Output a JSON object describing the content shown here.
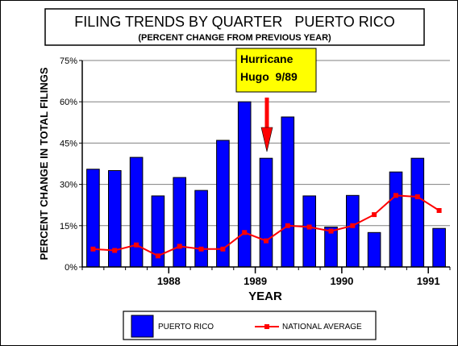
{
  "chart_data": {
    "type": "bar",
    "title": "FILING TRENDS BY QUARTER   PUERTO RICO",
    "subtitle": "(PERCENT CHANGE FROM PREVIOUS YEAR)",
    "xlabel": "YEAR",
    "ylabel": "PERCENT CHANGE IN TOTAL FILINGS",
    "ylim": [
      0,
      75
    ],
    "yticks": [
      "0%",
      "15%",
      "30%",
      "45%",
      "60%",
      "75%"
    ],
    "ytick_values": [
      0,
      15,
      30,
      45,
      60,
      75
    ],
    "xtick_labels": [
      "1988",
      "1989",
      "1990",
      "1991"
    ],
    "grid": true,
    "legend_position": "bottom",
    "bar_color": "#0000ff",
    "line_color": "#ff0000",
    "series": [
      {
        "name": "PUERTO RICO",
        "kind": "bar",
        "values": [
          35.5,
          35,
          39.8,
          25.8,
          32.5,
          27.8,
          46,
          60,
          39.5,
          54.5,
          25.8,
          14.5,
          26,
          12.5,
          34.5,
          39.5,
          14
        ]
      },
      {
        "name": "NATIONAL AVERAGE",
        "kind": "line",
        "values": [
          6.5,
          6,
          8,
          4,
          7.5,
          6.5,
          6.5,
          12.5,
          9.5,
          15,
          14.5,
          13,
          15,
          19,
          26,
          25.5,
          20.5
        ]
      }
    ],
    "annotations": [
      {
        "text_line1": "Hurricane",
        "text_line2": "Hugo  9/89",
        "points_to_index": 8,
        "background": "#ffff00",
        "arrow_color": "#ff0000"
      }
    ]
  }
}
